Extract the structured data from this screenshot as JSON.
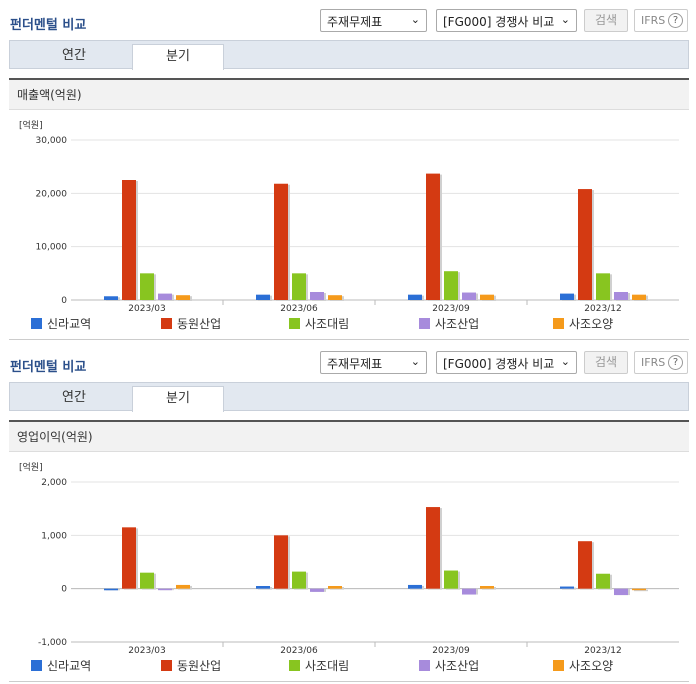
{
  "sections": [
    {
      "title": "펀더멘털 비교",
      "select1": "주재무제표",
      "select2": "[FG000] 경쟁사 비교",
      "search_label": "검색",
      "ifrs_label": "IFRS",
      "tabs": [
        "연간",
        "분기"
      ],
      "active_tab": 1,
      "chart_title": "매출액(억원)"
    },
    {
      "title": "펀더멘털 비교",
      "select1": "주재무제표",
      "select2": "[FG000] 경쟁사 비교",
      "search_label": "검색",
      "ifrs_label": "IFRS",
      "tabs": [
        "연간",
        "분기"
      ],
      "active_tab": 1,
      "chart_title": "영업이익(억원)"
    }
  ],
  "chart_data": [
    {
      "type": "bar",
      "title": "매출액(억원)",
      "ylabel": "[억원]",
      "categories": [
        "2023/03",
        "2023/06",
        "2023/09",
        "2023/12"
      ],
      "ylim": [
        0,
        30000
      ],
      "yticks": [
        0,
        10000,
        20000,
        30000
      ],
      "ytick_labels": [
        "0",
        "10,000",
        "20,000",
        "30,000"
      ],
      "series": [
        {
          "name": "신라교역",
          "color": "#2b6fd6",
          "values": [
            700,
            1000,
            1000,
            1200
          ]
        },
        {
          "name": "동원산업",
          "color": "#d43a12",
          "values": [
            22500,
            21800,
            23700,
            20800
          ]
        },
        {
          "name": "사조대림",
          "color": "#88c520",
          "values": [
            5000,
            5000,
            5400,
            5000
          ]
        },
        {
          "name": "사조산업",
          "color": "#a78bdc",
          "values": [
            1200,
            1500,
            1400,
            1500
          ]
        },
        {
          "name": "사조오양",
          "color": "#f59a1b",
          "values": [
            900,
            900,
            1000,
            1000
          ]
        }
      ]
    },
    {
      "type": "bar",
      "title": "영업이익(억원)",
      "ylabel": "[억원]",
      "categories": [
        "2023/03",
        "2023/06",
        "2023/09",
        "2023/12"
      ],
      "ylim": [
        -1000,
        2000
      ],
      "yticks": [
        -1000,
        0,
        1000,
        2000
      ],
      "ytick_labels": [
        "-1,000",
        "0",
        "1,000",
        "2,000"
      ],
      "series": [
        {
          "name": "신라교역",
          "color": "#2b6fd6",
          "values": [
            -30,
            50,
            70,
            40
          ]
        },
        {
          "name": "동원산업",
          "color": "#d43a12",
          "values": [
            1150,
            1000,
            1530,
            890
          ]
        },
        {
          "name": "사조대림",
          "color": "#88c520",
          "values": [
            300,
            320,
            340,
            280
          ]
        },
        {
          "name": "사조산업",
          "color": "#a78bdc",
          "values": [
            -20,
            -60,
            -110,
            -120
          ]
        },
        {
          "name": "사조오양",
          "color": "#f59a1b",
          "values": [
            70,
            50,
            50,
            0
          ]
        }
      ]
    }
  ]
}
